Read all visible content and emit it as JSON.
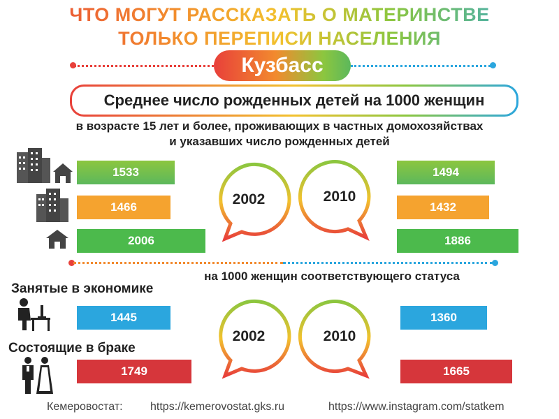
{
  "header": {
    "title_line1": "ЧТО МОГУТ РАССКАЗАТЬ О МАТЕРИНСТВЕ",
    "title_line2": "ТОЛЬКО ПЕРЕПИСИ НАСЕЛЕНИЯ",
    "region": "Кузбасс"
  },
  "section1": {
    "title": "Среднее число рожденных детей на 1000 женщин",
    "note_line1": "в возрасте 15 лет и более, проживающих в частных домохозяйствах",
    "note_line2": "и указавших число рожденных детей",
    "year_left": "2002",
    "year_right": "2010",
    "rows_2002": [
      "1533",
      "1466",
      "2006"
    ],
    "rows_2010": [
      "1494",
      "1432",
      "1886"
    ],
    "row_icons": [
      "city-and-house-icon",
      "city-icon",
      "house-icon"
    ]
  },
  "section2": {
    "note": "на 1000 женщин соответствующего статуса",
    "year_left": "2002",
    "year_right": "2010",
    "employed_label": "Занятые в экономике",
    "employed_2002": "1445",
    "employed_2010": "1360",
    "married_label": "Состоящие в браке",
    "married_2002": "1749",
    "married_2010": "1665"
  },
  "footer": {
    "org": "Кемеровостат:",
    "site": "https://kemerovostat.gks.ru",
    "instagram": "https://www.instagram.com/statkem"
  },
  "colors": {
    "red": "#d6363b",
    "orange": "#f5a32f",
    "green": "#4cba4c",
    "blue": "#2ba6de",
    "yellow": "#f2c12e"
  }
}
